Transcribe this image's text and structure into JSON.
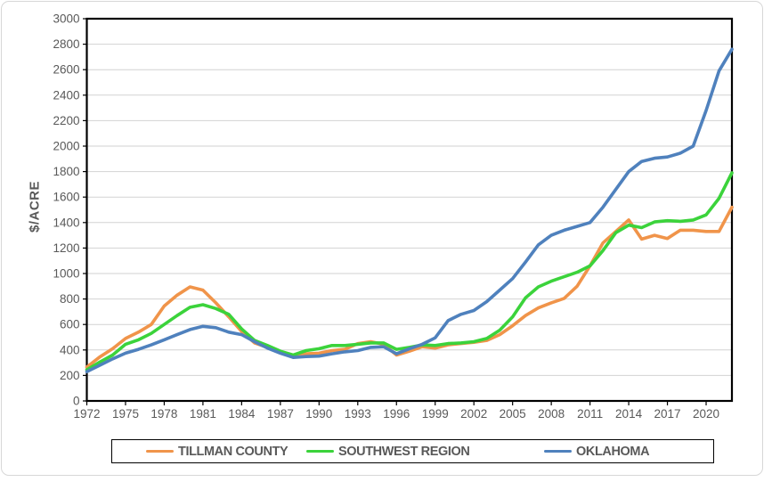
{
  "styles": {
    "background": "#FFFFFF",
    "outer_border_color": "#D7D7D7",
    "plot_border_color": "#000000",
    "gridline_color": "#D2D2D2",
    "text_color": "#595959",
    "legend_border_color": "#000000"
  },
  "chart_data": {
    "type": "line",
    "title": "",
    "xlabel": "",
    "ylabel": "$/ACRE",
    "grid": true,
    "legend_position": "bottom",
    "y_axis": {
      "min": 0,
      "max": 3000,
      "step": 200
    },
    "x_ticks": [
      1972,
      1975,
      1978,
      1981,
      1984,
      1987,
      1990,
      1993,
      1996,
      1999,
      2002,
      2005,
      2008,
      2011,
      2014,
      2017,
      2020
    ],
    "x": [
      1972,
      1973,
      1974,
      1975,
      1976,
      1977,
      1978,
      1979,
      1980,
      1981,
      1982,
      1983,
      1984,
      1985,
      1986,
      1987,
      1988,
      1989,
      1990,
      1991,
      1992,
      1993,
      1994,
      1995,
      1996,
      1997,
      1998,
      1999,
      2000,
      2001,
      2002,
      2003,
      2004,
      2005,
      2006,
      2007,
      2008,
      2009,
      2010,
      2011,
      2012,
      2013,
      2014,
      2015,
      2016,
      2017,
      2018,
      2019,
      2020,
      2021,
      2022
    ],
    "series": [
      {
        "name": "TILLMAN COUNTY",
        "color": "#F0944A",
        "values": [
          265,
          345,
          410,
          490,
          540,
          600,
          745,
          830,
          895,
          870,
          770,
          660,
          545,
          455,
          420,
          385,
          355,
          370,
          375,
          395,
          405,
          450,
          465,
          445,
          360,
          390,
          425,
          415,
          440,
          450,
          460,
          475,
          520,
          590,
          670,
          730,
          770,
          805,
          900,
          1060,
          1240,
          1330,
          1420,
          1270,
          1300,
          1275,
          1340,
          1340,
          1330,
          1330,
          1520
        ]
      },
      {
        "name": "SOUTHWEST REGION",
        "color": "#3BD33B",
        "values": [
          245,
          305,
          360,
          445,
          480,
          530,
          600,
          670,
          735,
          755,
          725,
          680,
          565,
          475,
          435,
          390,
          360,
          395,
          410,
          435,
          435,
          445,
          455,
          455,
          405,
          420,
          440,
          435,
          450,
          455,
          465,
          490,
          555,
          660,
          810,
          895,
          940,
          975,
          1010,
          1060,
          1180,
          1320,
          1380,
          1360,
          1405,
          1415,
          1410,
          1420,
          1460,
          1590,
          1790
        ]
      },
      {
        "name": "OKLAHOMA",
        "color": "#4F81BD",
        "values": [
          230,
          280,
          330,
          375,
          405,
          440,
          480,
          520,
          560,
          585,
          575,
          540,
          520,
          465,
          415,
          375,
          341,
          348,
          352,
          370,
          385,
          395,
          420,
          425,
          370,
          410,
          445,
          495,
          630,
          680,
          710,
          780,
          870,
          960,
          1090,
          1225,
          1300,
          1340,
          1370,
          1400,
          1520,
          1660,
          1800,
          1880,
          1905,
          1915,
          1945,
          2000,
          2280,
          2590,
          2760
        ]
      }
    ]
  }
}
